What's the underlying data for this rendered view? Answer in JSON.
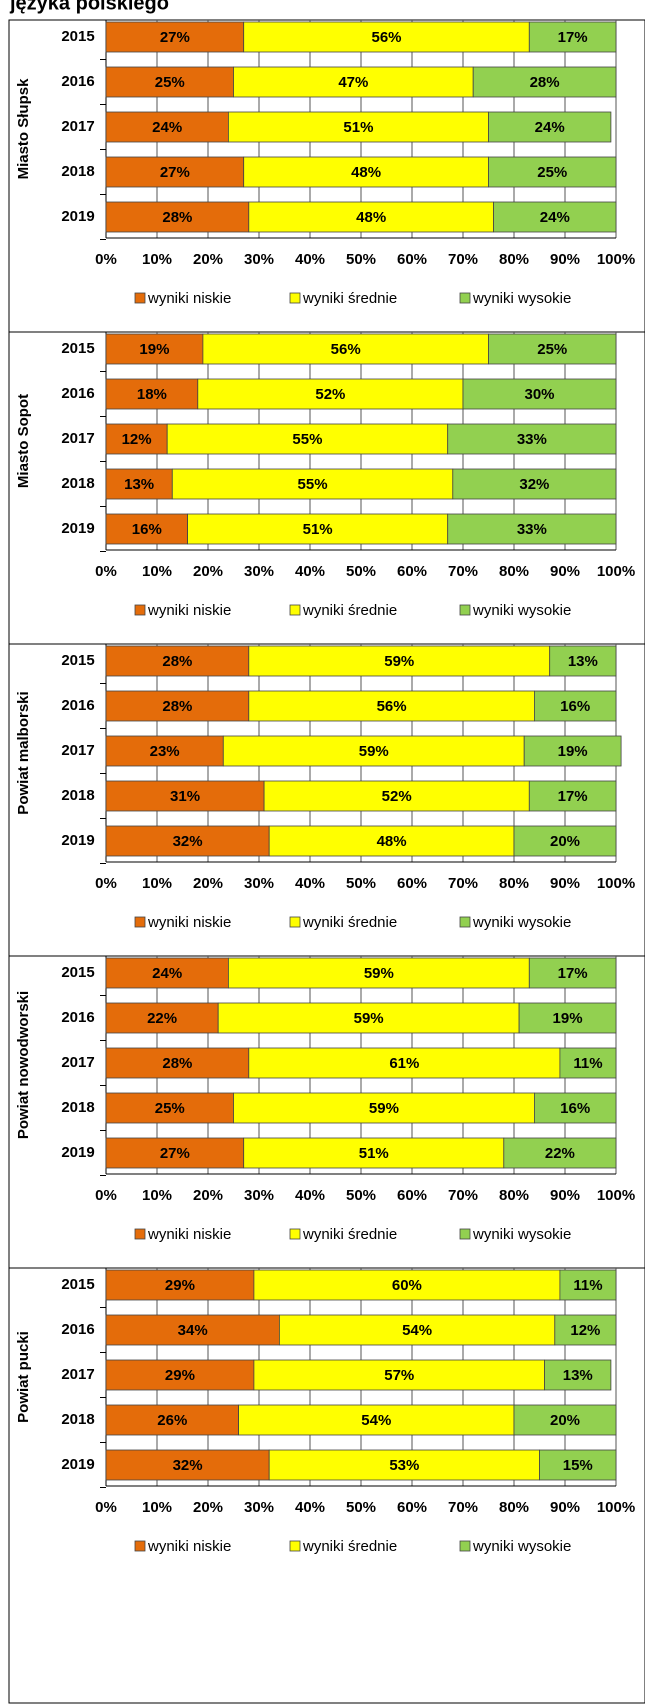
{
  "title": "języka polskiego",
  "chart_data": [
    {
      "type": "bar",
      "stacked": true,
      "orientation": "horizontal",
      "ylabel": "Miasto Słupsk",
      "categories": [
        "2015",
        "2016",
        "2017",
        "2018",
        "2019"
      ],
      "series": [
        {
          "name": "wyniki niskie",
          "color": "#e46c0a",
          "values": [
            27,
            25,
            24,
            27,
            28
          ],
          "value_labels": [
            "27%",
            "25%",
            "24%",
            "27%",
            "28%"
          ]
        },
        {
          "name": "wyniki średnie",
          "color": "#ffff00",
          "values": [
            56,
            47,
            51,
            48,
            48
          ],
          "value_labels": [
            "56%",
            "47%",
            "51%",
            "48%",
            "48%"
          ]
        },
        {
          "name": "wyniki wysokie",
          "color": "#92d050",
          "values": [
            17,
            28,
            24,
            25,
            24
          ],
          "value_labels": [
            "17%",
            "28%",
            "24%",
            "25%",
            "24%"
          ]
        }
      ],
      "xlim": [
        0,
        100
      ],
      "xticks": [
        {
          "value": 0,
          "label": "0%"
        },
        {
          "value": 10,
          "label": "10%"
        },
        {
          "value": 20,
          "label": "20%"
        },
        {
          "value": 30,
          "label": "30%"
        },
        {
          "value": 40,
          "label": "40%"
        },
        {
          "value": 50,
          "label": "50%"
        },
        {
          "value": 60,
          "label": "60%"
        },
        {
          "value": 70,
          "label": "70%"
        },
        {
          "value": 80,
          "label": "80%"
        },
        {
          "value": 90,
          "label": "90%"
        },
        {
          "value": 100,
          "label": "100%"
        }
      ],
      "grid": true,
      "legend": "bottom"
    },
    {
      "type": "bar",
      "stacked": true,
      "orientation": "horizontal",
      "ylabel": "Miasto Sopot",
      "categories": [
        "2015",
        "2016",
        "2017",
        "2018",
        "2019"
      ],
      "series": [
        {
          "name": "wyniki niskie",
          "color": "#e46c0a",
          "values": [
            19,
            18,
            12,
            13,
            16
          ],
          "value_labels": [
            "19%",
            "18%",
            "12%",
            "13%",
            "16%"
          ]
        },
        {
          "name": "wyniki średnie",
          "color": "#ffff00",
          "values": [
            56,
            52,
            55,
            55,
            51
          ],
          "value_labels": [
            "56%",
            "52%",
            "55%",
            "55%",
            "51%"
          ]
        },
        {
          "name": "wyniki wysokie",
          "color": "#92d050",
          "values": [
            25,
            30,
            33,
            32,
            33
          ],
          "value_labels": [
            "25%",
            "30%",
            "33%",
            "32%",
            "33%"
          ]
        }
      ],
      "xlim": [
        0,
        100
      ],
      "xticks": [
        {
          "value": 0,
          "label": "0%"
        },
        {
          "value": 10,
          "label": "10%"
        },
        {
          "value": 20,
          "label": "20%"
        },
        {
          "value": 30,
          "label": "30%"
        },
        {
          "value": 40,
          "label": "40%"
        },
        {
          "value": 50,
          "label": "50%"
        },
        {
          "value": 60,
          "label": "60%"
        },
        {
          "value": 70,
          "label": "70%"
        },
        {
          "value": 80,
          "label": "80%"
        },
        {
          "value": 90,
          "label": "90%"
        },
        {
          "value": 100,
          "label": "100%"
        }
      ],
      "grid": true,
      "legend": "bottom"
    },
    {
      "type": "bar",
      "stacked": true,
      "orientation": "horizontal",
      "ylabel": "Powiat malborski",
      "categories": [
        "2015",
        "2016",
        "2017",
        "2018",
        "2019"
      ],
      "series": [
        {
          "name": "wyniki niskie",
          "color": "#e46c0a",
          "values": [
            28,
            28,
            23,
            31,
            32
          ],
          "value_labels": [
            "28%",
            "28%",
            "23%",
            "31%",
            "32%"
          ]
        },
        {
          "name": "wyniki średnie",
          "color": "#ffff00",
          "values": [
            59,
            56,
            59,
            52,
            48
          ],
          "value_labels": [
            "59%",
            "56%",
            "59%",
            "52%",
            "48%"
          ]
        },
        {
          "name": "wyniki wysokie",
          "color": "#92d050",
          "values": [
            13,
            16,
            19,
            17,
            20
          ],
          "value_labels": [
            "13%",
            "16%",
            "19%",
            "17%",
            "20%"
          ]
        }
      ],
      "xlim": [
        0,
        100
      ],
      "xticks": [
        {
          "value": 0,
          "label": "0%"
        },
        {
          "value": 10,
          "label": "10%"
        },
        {
          "value": 20,
          "label": "20%"
        },
        {
          "value": 30,
          "label": "30%"
        },
        {
          "value": 40,
          "label": "40%"
        },
        {
          "value": 50,
          "label": "50%"
        },
        {
          "value": 60,
          "label": "60%"
        },
        {
          "value": 70,
          "label": "70%"
        },
        {
          "value": 80,
          "label": "80%"
        },
        {
          "value": 90,
          "label": "90%"
        },
        {
          "value": 100,
          "label": "100%"
        }
      ],
      "grid": true,
      "legend": "bottom"
    },
    {
      "type": "bar",
      "stacked": true,
      "orientation": "horizontal",
      "ylabel": "Powiat nowodworski",
      "categories": [
        "2015",
        "2016",
        "2017",
        "2018",
        "2019"
      ],
      "series": [
        {
          "name": "wyniki niskie",
          "color": "#e46c0a",
          "values": [
            24,
            22,
            28,
            25,
            27
          ],
          "value_labels": [
            "24%",
            "22%",
            "28%",
            "25%",
            "27%"
          ]
        },
        {
          "name": "wyniki średnie",
          "color": "#ffff00",
          "values": [
            59,
            59,
            61,
            59,
            51
          ],
          "value_labels": [
            "59%",
            "59%",
            "61%",
            "59%",
            "51%"
          ]
        },
        {
          "name": "wyniki wysokie",
          "color": "#92d050",
          "values": [
            17,
            19,
            11,
            16,
            22
          ],
          "value_labels": [
            "17%",
            "19%",
            "11%",
            "16%",
            "22%"
          ]
        }
      ],
      "xlim": [
        0,
        100
      ],
      "xticks": [
        {
          "value": 0,
          "label": "0%"
        },
        {
          "value": 10,
          "label": "10%"
        },
        {
          "value": 20,
          "label": "20%"
        },
        {
          "value": 30,
          "label": "30%"
        },
        {
          "value": 40,
          "label": "40%"
        },
        {
          "value": 50,
          "label": "50%"
        },
        {
          "value": 60,
          "label": "60%"
        },
        {
          "value": 70,
          "label": "70%"
        },
        {
          "value": 80,
          "label": "80%"
        },
        {
          "value": 90,
          "label": "90%"
        },
        {
          "value": 100,
          "label": "100%"
        }
      ],
      "grid": true,
      "legend": "bottom"
    },
    {
      "type": "bar",
      "stacked": true,
      "orientation": "horizontal",
      "ylabel": "Powiat pucki",
      "categories": [
        "2015",
        "2016",
        "2017",
        "2018",
        "2019"
      ],
      "series": [
        {
          "name": "wyniki niskie",
          "color": "#e46c0a",
          "values": [
            29,
            34,
            29,
            26,
            32
          ],
          "value_labels": [
            "29%",
            "34%",
            "29%",
            "26%",
            "32%"
          ]
        },
        {
          "name": "wyniki średnie",
          "color": "#ffff00",
          "values": [
            60,
            54,
            57,
            54,
            53
          ],
          "value_labels": [
            "60%",
            "54%",
            "57%",
            "54%",
            "53%"
          ]
        },
        {
          "name": "wyniki wysokie",
          "color": "#92d050",
          "values": [
            11,
            12,
            13,
            20,
            15
          ],
          "value_labels": [
            "11%",
            "12%",
            "13%",
            "20%",
            "15%"
          ]
        }
      ],
      "xlim": [
        0,
        100
      ],
      "xticks": [
        {
          "value": 0,
          "label": "0%"
        },
        {
          "value": 10,
          "label": "10%"
        },
        {
          "value": 20,
          "label": "20%"
        },
        {
          "value": 30,
          "label": "30%"
        },
        {
          "value": 40,
          "label": "40%"
        },
        {
          "value": 50,
          "label": "50%"
        },
        {
          "value": 60,
          "label": "60%"
        },
        {
          "value": 70,
          "label": "70%"
        },
        {
          "value": 80,
          "label": "80%"
        },
        {
          "value": 90,
          "label": "90%"
        },
        {
          "value": 100,
          "label": "100%"
        }
      ],
      "grid": true,
      "legend": "bottom"
    }
  ]
}
